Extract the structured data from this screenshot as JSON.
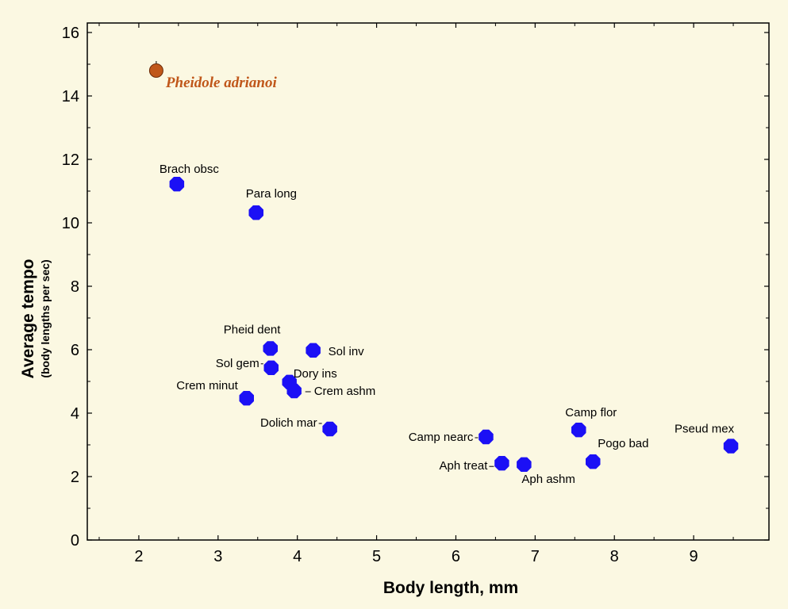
{
  "chart_data": {
    "type": "scatter",
    "xlabel": "Body length, mm",
    "ylabel": "Average tempo",
    "ylabel_sub": "(body lengths per sec)",
    "xlim": [
      1.35,
      9.95
    ],
    "ylim": [
      0,
      16.3
    ],
    "xticks": [
      2,
      3,
      4,
      5,
      6,
      7,
      8,
      9
    ],
    "yticks": [
      0,
      2,
      4,
      6,
      8,
      10,
      12,
      14,
      16
    ],
    "grid": false,
    "colors": {
      "points": "#1b10f5",
      "highlight": "#c0571a",
      "background": "#fbf8e2"
    },
    "series": [
      {
        "name": "Pheidole adrianoi",
        "highlight": true,
        "points": [
          {
            "x": 2.22,
            "y": 14.8
          }
        ]
      },
      {
        "points": [
          {
            "label": "Brach obsc",
            "x": 2.48,
            "y": 11.22
          },
          {
            "label": "Para long",
            "x": 3.48,
            "y": 10.32
          },
          {
            "label": "Pheid dent",
            "x": 3.66,
            "y": 6.04
          },
          {
            "label": "Sol inv",
            "x": 4.2,
            "y": 5.98
          },
          {
            "label": "Sol gem",
            "x": 3.67,
            "y": 5.43
          },
          {
            "label": "Dory ins",
            "x": 3.9,
            "y": 4.98
          },
          {
            "label": "Crem ashm",
            "x": 3.96,
            "y": 4.7
          },
          {
            "label": "Crem minut",
            "x": 3.36,
            "y": 4.47
          },
          {
            "label": "Dolich mar",
            "x": 4.41,
            "y": 3.5
          },
          {
            "label": "Camp nearc",
            "x": 6.38,
            "y": 3.25
          },
          {
            "label": "Aph treat",
            "x": 6.58,
            "y": 2.42
          },
          {
            "label": "Aph ashm",
            "x": 6.86,
            "y": 2.38
          },
          {
            "label": "Camp flor",
            "x": 7.55,
            "y": 3.47
          },
          {
            "label": "Pogo bad",
            "x": 7.73,
            "y": 2.47
          },
          {
            "label": "Pseud mex",
            "x": 9.47,
            "y": 2.96
          }
        ]
      }
    ]
  }
}
